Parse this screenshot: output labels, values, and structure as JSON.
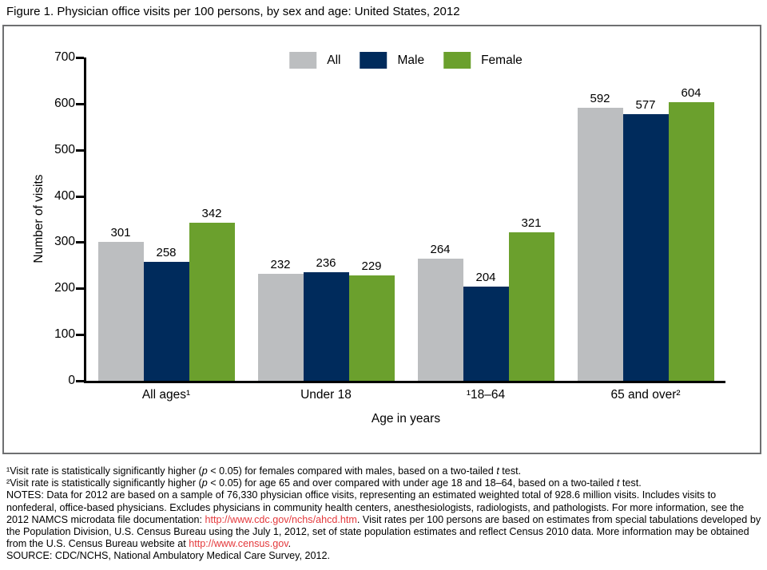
{
  "figure_title": "Figure 1. Physician office visits per 100 persons, by sex and age: United States, 2012",
  "chart_data": {
    "type": "bar",
    "title": "Figure 1. Physician office visits per 100 persons, by sex and age: United States, 2012",
    "categories": [
      "All ages¹",
      "Under 18",
      "¹18–64",
      "65 and over²"
    ],
    "series": [
      {
        "name": "All",
        "color": "#bcbec0",
        "values": [
          301,
          232,
          264,
          592
        ]
      },
      {
        "name": "Male",
        "color": "#002b5c",
        "values": [
          258,
          236,
          204,
          577
        ]
      },
      {
        "name": "Female",
        "color": "#6ba02d",
        "values": [
          342,
          229,
          321,
          604
        ]
      }
    ],
    "xlabel": "Age in years",
    "ylabel": "Number of visits",
    "ylim": [
      0,
      700
    ],
    "yticks": [
      0,
      100,
      200,
      300,
      400,
      500,
      600,
      700
    ],
    "grid": false,
    "legend_position": "top-center",
    "bar_value_labels": true
  },
  "footnotes": {
    "lines": [
      {
        "segments": [
          {
            "text": "¹Visit rate is statistically significantly higher ("
          },
          {
            "text": "p",
            "style": "italic"
          },
          {
            "text": " < 0.05) for females compared with males, based on a two-tailed "
          },
          {
            "text": "t",
            "style": "italic"
          },
          {
            "text": " test."
          }
        ]
      },
      {
        "segments": [
          {
            "text": "²Visit rate is statistically significantly higher ("
          },
          {
            "text": "p",
            "style": "italic"
          },
          {
            "text": " < 0.05) for age 65 and over compared with under age 18 and 18–64, based on a two-tailed "
          },
          {
            "text": "t",
            "style": "italic"
          },
          {
            "text": " test."
          }
        ]
      },
      {
        "segments": [
          {
            "text": "NOTES: Data for 2012 are based on a sample of 76,330 physician office visits, representing an estimated weighted total of 928.6 million visits. Includes visits to nonfederal, office-based physicians. Excludes physicians in community health centers, anesthesiologists, radiologists, and pathologists. For more information, see the 2012 NAMCS microdata file documentation: "
          },
          {
            "text": "http://www.cdc.gov/nchs/ahcd.htm",
            "style": "link",
            "name": "cdc-nchs-ahcd-link"
          },
          {
            "text": ". Visit rates per 100 persons are based on estimates from special tabulations developed by the Population Division, U.S. Census Bureau using the July 1, 2012, set of state population estimates and reflect Census 2010 data. More information may be obtained from the U.S. Census Bureau website at "
          },
          {
            "text": "http://www.census.gov",
            "style": "link",
            "name": "census-gov-link"
          },
          {
            "text": "."
          }
        ]
      },
      {
        "segments": [
          {
            "text": "SOURCE: CDC/NCHS, National Ambulatory Medical Care Survey, 2012."
          }
        ]
      }
    ]
  },
  "colors": {
    "axis": "#000000",
    "frame_border": "#6e6f71",
    "bar_all": "#bcbec0",
    "bar_male": "#002b5c",
    "bar_female": "#6ba02d",
    "link": "#e4393c"
  }
}
